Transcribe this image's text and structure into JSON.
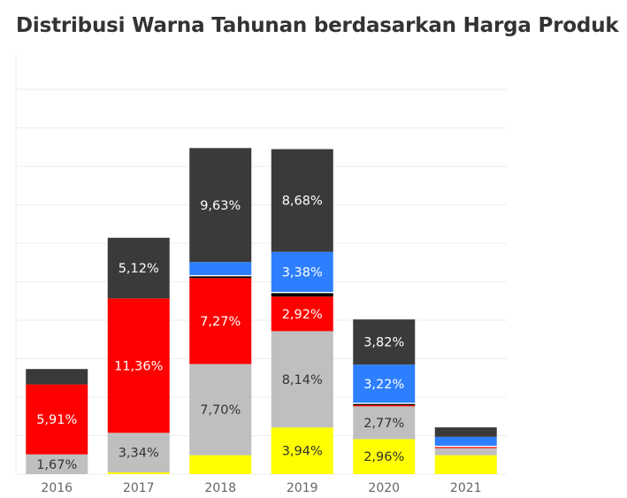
{
  "chart_data": {
    "type": "bar",
    "stacked": true,
    "title": "Distribusi Warna Tahunan berdasarkan Harga Produk",
    "xlabel": "",
    "ylabel": "",
    "ylim": [
      0,
      36
    ],
    "grid": true,
    "categories": [
      "2016",
      "2017",
      "2018",
      "2019",
      "2020",
      "2021"
    ],
    "series": [
      {
        "color": "#ffff00",
        "values": [
          0,
          0.15,
          1.6,
          3.94,
          2.96,
          1.6
        ],
        "labels": [
          "",
          "",
          "",
          "3,94%",
          "2,96%",
          ""
        ]
      },
      {
        "color": "#bfbfbf",
        "values": [
          1.67,
          3.34,
          7.7,
          8.14,
          2.77,
          0.6
        ],
        "labels": [
          "1,67%",
          "3,34%",
          "7,70%",
          "8,14%",
          "2,77%",
          ""
        ]
      },
      {
        "color": "#ff0000",
        "values": [
          5.91,
          11.36,
          7.27,
          2.92,
          0.1,
          0.1
        ],
        "labels": [
          "5,91%",
          "11,36%",
          "7,27%",
          "2,92%",
          "",
          ""
        ]
      },
      {
        "color": "#000000",
        "values": [
          0,
          0,
          0.15,
          0.3,
          0.1,
          0
        ],
        "labels": [
          "",
          "",
          "",
          "",
          "",
          ""
        ]
      },
      {
        "color": "#ffffff",
        "values": [
          0,
          0,
          0.1,
          0.1,
          0.1,
          0.1
        ],
        "labels": [
          "",
          "",
          "",
          "",
          "",
          ""
        ]
      },
      {
        "color": "#2d7fff",
        "values": [
          0,
          0,
          1.1,
          3.38,
          3.22,
          0.75
        ],
        "labels": [
          "",
          "",
          "",
          "3,38%",
          "3,22%",
          ""
        ]
      },
      {
        "color": "#3a3a3a",
        "values": [
          1.3,
          5.12,
          9.63,
          8.68,
          3.82,
          0.8
        ],
        "labels": [
          "",
          "5,12%",
          "9,63%",
          "8,68%",
          "3,82%",
          ""
        ]
      }
    ]
  }
}
